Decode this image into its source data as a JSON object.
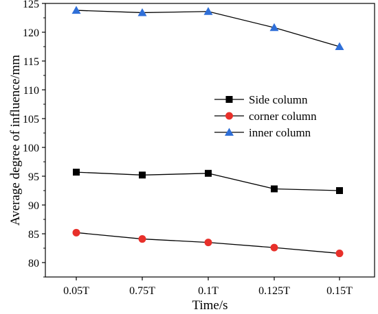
{
  "chart_data": {
    "type": "line",
    "categories": [
      "0.05T",
      "0.75T",
      "0.1T",
      "0.125T",
      "0.15T"
    ],
    "series": [
      {
        "name": "Side column",
        "values": [
          95.7,
          95.2,
          95.5,
          92.8,
          92.5
        ],
        "color": "#000000",
        "marker": "square"
      },
      {
        "name": "corner column",
        "values": [
          85.2,
          84.1,
          83.5,
          82.6,
          81.6
        ],
        "color": "#e8302a",
        "marker": "circle"
      },
      {
        "name": "inner column",
        "values": [
          123.8,
          123.4,
          123.6,
          120.8,
          117.5
        ],
        "color": "#2f6fd8",
        "marker": "triangle"
      }
    ],
    "xlabel": "Time/s",
    "ylabel": "Average degree of influence/mm",
    "ylim": [
      77.5,
      125
    ],
    "yticks": [
      80,
      85,
      90,
      95,
      100,
      105,
      110,
      115,
      120,
      125
    ],
    "grid": false,
    "legend_position": "middle-right"
  }
}
